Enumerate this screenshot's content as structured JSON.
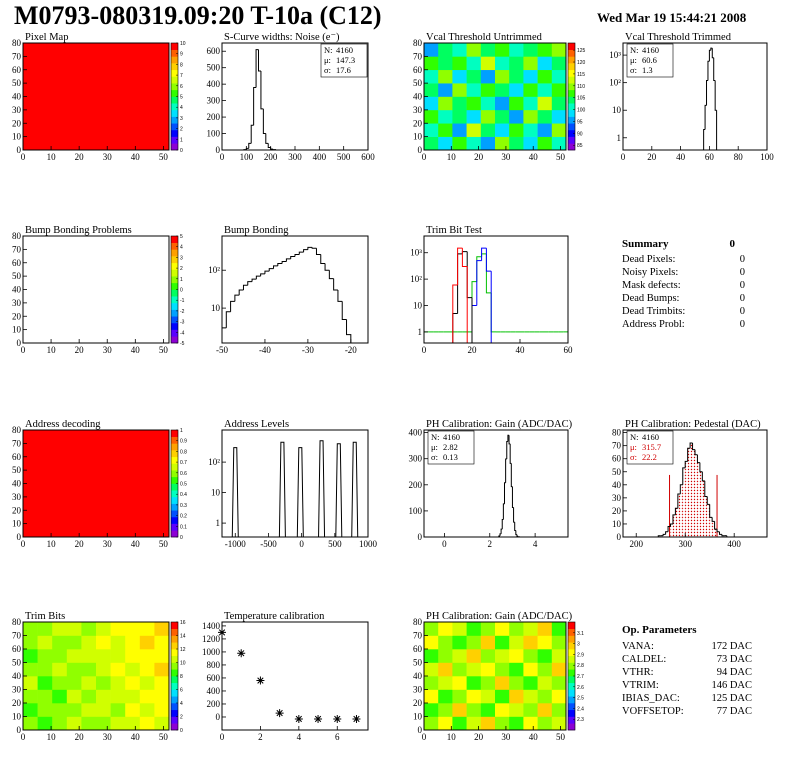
{
  "header": {
    "title": "M0793-080319.09:20 T-10a (C12)",
    "date": "Wed Mar 19 15:44:21 2008"
  },
  "palette": [
    "#8c00d4",
    "#5a00ff",
    "#0000ff",
    "#0050ff",
    "#00a0ff",
    "#00e0ff",
    "#00ffc0",
    "#00ff60",
    "#30ff00",
    "#90ff00",
    "#d0ff00",
    "#ffff00",
    "#ffd000",
    "#ffa000",
    "#ff6000",
    "#ff0000"
  ],
  "chart_data": [
    {
      "type": "heatmap",
      "title": "Pixel Map",
      "xlim": [
        0,
        52
      ],
      "xticks": [
        0,
        10,
        20,
        30,
        40,
        50
      ],
      "ylim": [
        0,
        80
      ],
      "yticks": [
        0,
        10,
        20,
        30,
        40,
        50,
        60,
        70,
        80
      ],
      "zlim": [
        0,
        10
      ],
      "zticks": [
        0,
        1,
        2,
        3,
        4,
        5,
        6,
        7,
        8,
        9,
        10
      ],
      "z": [
        [
          10
        ]
      ]
    },
    {
      "type": "histogram",
      "title": "S-Curve widths: Noise (e⁻)",
      "xlim": [
        0,
        600
      ],
      "xticks": [
        0,
        100,
        200,
        300,
        400,
        500,
        600
      ],
      "ylim": [
        0,
        650
      ],
      "yticks": [
        0,
        100,
        200,
        300,
        400,
        500,
        600
      ],
      "bins": [
        90,
        100,
        110,
        120,
        130,
        140,
        150,
        160,
        170,
        180,
        190,
        200,
        210,
        220
      ],
      "values": [
        2,
        10,
        40,
        150,
        380,
        610,
        480,
        250,
        100,
        40,
        15,
        5,
        2
      ],
      "color": "#000000",
      "stats_position": "top-right",
      "stats": [
        {
          "label": "N:",
          "value": 4160
        },
        {
          "label": "μ:",
          "value": 147.3
        },
        {
          "label": "σ:",
          "value": 17.6
        }
      ]
    },
    {
      "type": "heatmap",
      "title": "Vcal Threshold Untrimmed",
      "xlim": [
        0,
        52
      ],
      "xticks": [
        0,
        10,
        20,
        30,
        40,
        50
      ],
      "ylim": [
        0,
        80
      ],
      "yticks": [
        0,
        10,
        20,
        30,
        40,
        50,
        60,
        70,
        80
      ],
      "zlim": [
        83,
        128
      ],
      "zticks": [
        85,
        90,
        95,
        100,
        105,
        110,
        115,
        120,
        125
      ],
      "z": [
        [
          104,
          98,
          108,
          101,
          95,
          110,
          103,
          99,
          106,
          100
        ],
        [
          100,
          106,
          97,
          112,
          104,
          99,
          108,
          102,
          96,
          109
        ],
        [
          107,
          101,
          103,
          98,
          110,
          105,
          97,
          111,
          103,
          98
        ],
        [
          99,
          109,
          104,
          106,
          100,
          96,
          107,
          101,
          112,
          104
        ],
        [
          105,
          97,
          111,
          102,
          108,
          103,
          99,
          106,
          100,
          107
        ],
        [
          102,
          110,
          99,
          105,
          97,
          109,
          104,
          98,
          108,
          101
        ],
        [
          108,
          103,
          106,
          100,
          112,
          101,
          105,
          110,
          99,
          104
        ],
        [
          97,
          105,
          101,
          109,
          103,
          107,
          100,
          104,
          106,
          111
        ]
      ]
    },
    {
      "type": "histogram",
      "title": "Vcal Threshold Trimmed",
      "log_y": true,
      "xlim": [
        0,
        100
      ],
      "xticks": [
        0,
        20,
        40,
        60,
        80,
        100
      ],
      "ylim": [
        0.36,
        2750
      ],
      "yticks": [
        1,
        10,
        {
          "value": 100,
          "label": "10²"
        },
        {
          "value": 1000,
          "label": "10³"
        }
      ],
      "bins": [
        55,
        56,
        57,
        58,
        59,
        60,
        61,
        62,
        63,
        64,
        65,
        66
      ],
      "values": [
        0,
        2,
        15,
        120,
        600,
        1500,
        1800,
        800,
        120,
        10,
        0
      ],
      "color": "#000000",
      "stats_position": "top-left",
      "stats": [
        {
          "label": "N:",
          "value": 4160
        },
        {
          "label": "μ:",
          "value": 60.6
        },
        {
          "label": "σ:",
          "value": 1.3
        }
      ]
    },
    {
      "type": "heatmap",
      "title": "Bump Bonding Problems",
      "xlim": [
        0,
        52
      ],
      "xticks": [
        0,
        10,
        20,
        30,
        40,
        50
      ],
      "ylim": [
        0,
        80
      ],
      "yticks": [
        0,
        10,
        20,
        30,
        40,
        50,
        60,
        70,
        80
      ],
      "zlim": [
        -5,
        5
      ],
      "zticks": [
        -5,
        -4,
        -3,
        -2,
        -1,
        0,
        1,
        2,
        3,
        4,
        5
      ]
    },
    {
      "type": "histogram",
      "title": "Bump Bonding",
      "log_y": true,
      "xlim": [
        -50,
        -16
      ],
      "xticks": [
        -50,
        -40,
        -30,
        -20
      ],
      "ylim": [
        1.2,
        800
      ],
      "yticks": [
        10,
        {
          "value": 100,
          "label": "10²"
        }
      ],
      "bins": [
        -50,
        -49,
        -48,
        -47,
        -46,
        -45,
        -44,
        -43,
        -42,
        -41,
        -40,
        -39,
        -38,
        -37,
        -36,
        -35,
        -34,
        -33,
        -32,
        -31,
        -30,
        -29,
        -28,
        -27,
        -26,
        -25,
        -24,
        -23,
        -22,
        -21,
        -20
      ],
      "values": [
        3,
        8,
        15,
        22,
        30,
        40,
        50,
        58,
        70,
        80,
        95,
        110,
        130,
        150,
        170,
        200,
        230,
        260,
        300,
        350,
        400,
        380,
        260,
        150,
        100,
        60,
        30,
        15,
        5,
        2
      ],
      "color": "#000000"
    },
    {
      "type": "histogram",
      "title": "Trim Bit Test",
      "log_y": true,
      "xlim": [
        0,
        60
      ],
      "xticks": [
        0,
        20,
        40,
        60
      ],
      "ylim": [
        0.38,
        4300
      ],
      "yticks": [
        1,
        10,
        {
          "value": 100,
          "label": "10²"
        },
        {
          "value": 1000,
          "label": "10³"
        }
      ],
      "bins": [
        0,
        2,
        4,
        6,
        8,
        10,
        12,
        14,
        16,
        18,
        20,
        22,
        24,
        26,
        28,
        30,
        32,
        34,
        36,
        38,
        40,
        42,
        44,
        46,
        48,
        50,
        52,
        54,
        56,
        58,
        60
      ],
      "series": [
        {
          "color": "#00c000",
          "values": [
            1,
            1,
            1,
            1,
            1,
            1,
            1,
            1,
            1,
            1,
            80,
            700,
            900,
            30,
            1,
            1,
            1,
            1,
            1,
            1,
            1,
            1,
            1,
            1,
            1,
            1,
            1,
            1,
            1,
            1
          ]
        },
        {
          "color": "#0000ff",
          "values": [
            0,
            0,
            0,
            0,
            0,
            0,
            0,
            0,
            0,
            0,
            10,
            500,
            1500,
            200,
            0,
            0,
            0,
            0,
            0,
            0,
            0,
            0,
            0,
            0,
            0,
            0,
            0,
            0,
            0,
            0
          ]
        },
        {
          "color": "#000000",
          "values": [
            0,
            0,
            0,
            0,
            0,
            0,
            5,
            900,
            1100,
            20,
            0,
            0,
            0,
            0,
            0,
            0,
            0,
            0,
            0,
            0,
            0,
            0,
            0,
            0,
            0,
            0,
            0,
            0,
            0,
            0
          ]
        },
        {
          "color": "#ff0000",
          "values": [
            0,
            0,
            0,
            0,
            0,
            0,
            60,
            1500,
            300,
            0,
            0,
            0,
            0,
            0,
            0,
            0,
            0,
            0,
            0,
            0,
            0,
            0,
            0,
            0,
            0,
            0,
            0,
            0,
            0,
            0
          ]
        }
      ]
    },
    {
      "type": "heatmap",
      "title": "Address decoding",
      "xlim": [
        0,
        52
      ],
      "xticks": [
        0,
        10,
        20,
        30,
        40,
        50
      ],
      "ylim": [
        0,
        80
      ],
      "yticks": [
        0,
        10,
        20,
        30,
        40,
        50,
        60,
        70,
        80
      ],
      "zlim": [
        0,
        1
      ],
      "zticks": [
        0,
        0.1,
        0.2,
        0.3,
        0.4,
        0.5,
        0.6,
        0.7,
        0.8,
        0.9,
        1
      ],
      "z": [
        [
          1
        ]
      ]
    },
    {
      "type": "spikes",
      "title": "Address Levels",
      "log_y": true,
      "xlim": [
        -1200,
        1000
      ],
      "xticks": [
        -1000,
        -500,
        0,
        500,
        1000
      ],
      "ylim": [
        0.35,
        1130
      ],
      "yticks": [
        1,
        10,
        {
          "value": 100,
          "label": "10²"
        }
      ],
      "x": [
        -1000,
        -290,
        -20,
        300,
        560,
        800
      ],
      "values": [
        300,
        450,
        300,
        500,
        400,
        450
      ],
      "color": "#000000"
    },
    {
      "type": "histogram",
      "title": "PH Calibration: Gain (ADC/DAC)",
      "xlim": [
        -0.9,
        5.45
      ],
      "xticks": [
        0,
        2,
        4
      ],
      "ylim": [
        0,
        410
      ],
      "yticks": [
        0,
        100,
        200,
        300,
        400
      ],
      "bins": [
        2.4,
        2.45,
        2.5,
        2.55,
        2.6,
        2.65,
        2.7,
        2.75,
        2.8,
        2.85,
        2.9,
        2.95,
        3,
        3.05,
        3.1,
        3.15,
        3.2,
        3.25,
        3.3
      ],
      "values": [
        4,
        12,
        30,
        67,
        127,
        208,
        299,
        366,
        390,
        357,
        282,
        193,
        113,
        57,
        25,
        9,
        3,
        1
      ],
      "color": "#000000",
      "stats_position": "top-left",
      "stats": [
        {
          "label": "N:",
          "value": 4160
        },
        {
          "label": "μ:",
          "value": 2.82
        },
        {
          "label": "σ:",
          "value": 0.13
        }
      ]
    },
    {
      "type": "histogram",
      "title": "PH Calibration: Pedestal (DAC)",
      "xlim": [
        173,
        467
      ],
      "xticks": [
        200,
        300,
        400
      ],
      "ylim": [
        0,
        82
      ],
      "yticks": [
        0,
        10,
        20,
        30,
        40,
        50,
        60,
        70,
        80
      ],
      "bins": [
        240,
        245,
        250,
        255,
        260,
        265,
        270,
        275,
        280,
        285,
        290,
        295,
        300,
        305,
        310,
        315,
        320,
        325,
        330,
        335,
        340,
        345,
        350,
        355,
        360,
        365,
        370,
        375,
        380,
        385,
        390
      ],
      "values": [
        0,
        1,
        1,
        2,
        4,
        8,
        10,
        17,
        22,
        33,
        40,
        53,
        58,
        68,
        72,
        67,
        63,
        57,
        50,
        43,
        31,
        25,
        15,
        12,
        6,
        4,
        2,
        1,
        1,
        0
      ],
      "color": "#000000",
      "cut_lines": [
        268,
        365
      ],
      "fill_color": "#d00000",
      "stats_position": "top-left",
      "stats": [
        {
          "label": "N:",
          "value": 4160
        },
        {
          "label": "μ:",
          "value": 315.7,
          "color": "#d00000"
        },
        {
          "label": "σ:",
          "value": 22.2,
          "color": "#d00000"
        }
      ]
    },
    {
      "type": "heatmap",
      "title": "Trim Bits",
      "xlim": [
        0,
        52
      ],
      "xticks": [
        0,
        10,
        20,
        30,
        40,
        50
      ],
      "ylim": [
        0,
        80
      ],
      "yticks": [
        0,
        10,
        20,
        30,
        40,
        50,
        60,
        70,
        80
      ],
      "zlim": [
        0,
        16
      ],
      "zticks": [
        0,
        2,
        4,
        6,
        8,
        10,
        12,
        14,
        16
      ],
      "z": [
        [
          9,
          8,
          9,
          10,
          9,
          9,
          10,
          10,
          11,
          10
        ],
        [
          8,
          9,
          9,
          9,
          10,
          10,
          9,
          11,
          10,
          11
        ],
        [
          9,
          9,
          8,
          10,
          9,
          10,
          10,
          10,
          11,
          11
        ],
        [
          10,
          8,
          9,
          9,
          10,
          9,
          10,
          11,
          10,
          11
        ],
        [
          9,
          9,
          10,
          9,
          9,
          10,
          11,
          10,
          11,
          12
        ],
        [
          8,
          9,
          9,
          10,
          10,
          10,
          10,
          11,
          11,
          11
        ],
        [
          9,
          10,
          9,
          9,
          10,
          11,
          10,
          11,
          12,
          11
        ],
        [
          9,
          9,
          10,
          10,
          9,
          10,
          11,
          11,
          11,
          12
        ]
      ]
    },
    {
      "type": "scatter",
      "title": "Temperature calibration",
      "xlim": [
        0,
        7.6
      ],
      "xticks": [
        0,
        2,
        4,
        6
      ],
      "ylim": [
        -200,
        1460
      ],
      "yticks": [
        0,
        200,
        400,
        600,
        800,
        1000,
        1200,
        1400
      ],
      "x": [
        0,
        1,
        2,
        3,
        4,
        5,
        6,
        7
      ],
      "values": [
        1300,
        980,
        560,
        60,
        -30,
        -30,
        -30,
        -30
      ],
      "color": "#000000"
    },
    {
      "type": "heatmap",
      "title": "PH Calibration: Gain (ADC/DAC)",
      "xlim": [
        0,
        52
      ],
      "xticks": [
        0,
        10,
        20,
        30,
        40,
        50
      ],
      "ylim": [
        0,
        80
      ],
      "yticks": [
        0,
        10,
        20,
        30,
        40,
        50,
        60,
        70,
        80
      ],
      "zlim": [
        2.2,
        3.2
      ],
      "zticks": [
        2.3,
        2.4,
        2.5,
        2.6,
        2.7,
        2.8,
        2.9,
        3,
        3.1
      ],
      "z": [
        [
          2.8,
          2.9,
          2.7,
          2.85,
          2.95,
          2.8,
          2.75,
          2.9,
          2.8,
          2.85
        ],
        [
          2.75,
          2.8,
          2.95,
          2.8,
          2.7,
          2.9,
          2.85,
          2.8,
          2.95,
          2.8
        ],
        [
          2.9,
          2.7,
          2.8,
          2.9,
          2.85,
          2.75,
          2.95,
          2.85,
          2.8,
          2.9
        ],
        [
          2.8,
          2.85,
          2.9,
          2.75,
          2.8,
          2.95,
          2.8,
          2.7,
          2.85,
          2.8
        ],
        [
          2.85,
          2.95,
          2.8,
          2.85,
          2.9,
          2.8,
          2.75,
          2.9,
          2.8,
          2.95
        ],
        [
          2.7,
          2.8,
          2.85,
          2.95,
          2.8,
          2.85,
          2.9,
          2.8,
          2.75,
          2.85
        ],
        [
          2.9,
          2.8,
          2.75,
          2.8,
          2.95,
          2.7,
          2.85,
          2.95,
          2.9,
          2.8
        ],
        [
          2.8,
          2.9,
          2.85,
          2.7,
          2.8,
          2.9,
          2.8,
          2.85,
          2.95,
          2.75
        ]
      ]
    }
  ],
  "summary": {
    "title": "Summary",
    "value": 0,
    "rows": [
      {
        "label": "Dead Pixels:",
        "value": 0
      },
      {
        "label": "Noisy Pixels:",
        "value": 0
      },
      {
        "label": "Mask defects:",
        "value": 0
      },
      {
        "label": "Dead Bumps:",
        "value": 0
      },
      {
        "label": "Dead Trimbits:",
        "value": 0
      },
      {
        "label": "Address Probl:",
        "value": 0
      }
    ]
  },
  "op_parameters": {
    "title": "Op. Parameters",
    "rows": [
      {
        "label": "VANA:",
        "value": "172 DAC"
      },
      {
        "label": "CALDEL:",
        "value": "73 DAC"
      },
      {
        "label": "VTHR:",
        "value": "94 DAC"
      },
      {
        "label": "VTRIM:",
        "value": "146 DAC"
      },
      {
        "label": "IBIAS_DAC:",
        "value": "125 DAC"
      },
      {
        "label": "VOFFSETOP:",
        "value": "77 DAC"
      }
    ]
  }
}
